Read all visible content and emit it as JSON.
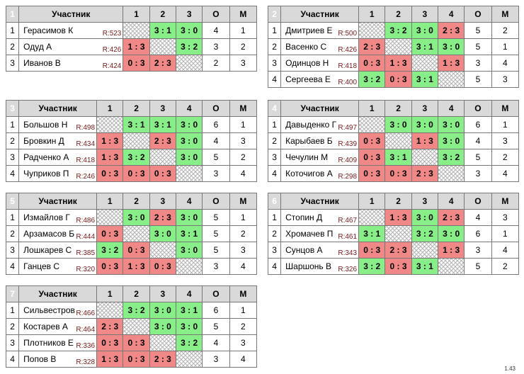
{
  "header": {
    "player": "Участник",
    "points": "О",
    "place": "М"
  },
  "version": "1.43",
  "groups": [
    {
      "number": "1",
      "cols": [
        "1",
        "2",
        "3"
      ],
      "players": [
        {
          "idx": "1",
          "name": "Герасимов К",
          "rating": "R:523",
          "cells": [
            {
              "s": "",
              "t": "self"
            },
            {
              "s": "3 : 1",
              "t": "win"
            },
            {
              "s": "3 : 0",
              "t": "win"
            }
          ],
          "points": "4",
          "place": "1"
        },
        {
          "idx": "2",
          "name": "Одуд А",
          "rating": "R:426",
          "cells": [
            {
              "s": "1 : 3",
              "t": "loss"
            },
            {
              "s": "",
              "t": "self"
            },
            {
              "s": "3 : 2",
              "t": "win"
            }
          ],
          "points": "3",
          "place": "2"
        },
        {
          "idx": "3",
          "name": "Иванов В",
          "rating": "R:424",
          "cells": [
            {
              "s": "0 : 3",
              "t": "loss"
            },
            {
              "s": "2 : 3",
              "t": "loss"
            },
            {
              "s": "",
              "t": "self"
            }
          ],
          "points": "2",
          "place": "3"
        }
      ]
    },
    {
      "number": "2",
      "cols": [
        "1",
        "2",
        "3",
        "4"
      ],
      "players": [
        {
          "idx": "1",
          "name": "Дмитриев Е",
          "rating": "R:500",
          "cells": [
            {
              "s": "",
              "t": "self"
            },
            {
              "s": "3 : 2",
              "t": "win"
            },
            {
              "s": "3 : 0",
              "t": "win"
            },
            {
              "s": "2 : 3",
              "t": "loss"
            }
          ],
          "points": "5",
          "place": "2"
        },
        {
          "idx": "2",
          "name": "Васенко С",
          "rating": "R:426",
          "cells": [
            {
              "s": "2 : 3",
              "t": "loss"
            },
            {
              "s": "",
              "t": "self"
            },
            {
              "s": "3 : 1",
              "t": "win"
            },
            {
              "s": "3 : 0",
              "t": "win"
            }
          ],
          "points": "5",
          "place": "1"
        },
        {
          "idx": "3",
          "name": "Одинцов Н",
          "rating": "R:418",
          "cells": [
            {
              "s": "0 : 3",
              "t": "loss"
            },
            {
              "s": "1 : 3",
              "t": "loss"
            },
            {
              "s": "",
              "t": "self"
            },
            {
              "s": "1 : 3",
              "t": "loss"
            }
          ],
          "points": "3",
          "place": "4"
        },
        {
          "idx": "4",
          "name": "Сергеева Е",
          "rating": "R:400",
          "cells": [
            {
              "s": "3 : 2",
              "t": "win"
            },
            {
              "s": "0 : 3",
              "t": "loss"
            },
            {
              "s": "3 : 1",
              "t": "win"
            },
            {
              "s": "",
              "t": "self"
            }
          ],
          "points": "5",
          "place": "3"
        }
      ]
    },
    {
      "number": "3",
      "cols": [
        "1",
        "2",
        "3",
        "4"
      ],
      "players": [
        {
          "idx": "1",
          "name": "Большов Н",
          "rating": "R:498",
          "cells": [
            {
              "s": "",
              "t": "self"
            },
            {
              "s": "3 : 1",
              "t": "win"
            },
            {
              "s": "3 : 1",
              "t": "win"
            },
            {
              "s": "3 : 0",
              "t": "win"
            }
          ],
          "points": "6",
          "place": "1"
        },
        {
          "idx": "2",
          "name": "Бровкин Д",
          "rating": "R:434",
          "cells": [
            {
              "s": "1 : 3",
              "t": "loss"
            },
            {
              "s": "",
              "t": "self"
            },
            {
              "s": "2 : 3",
              "t": "loss"
            },
            {
              "s": "3 : 0",
              "t": "win"
            }
          ],
          "points": "4",
          "place": "3"
        },
        {
          "idx": "3",
          "name": "Радченко А",
          "rating": "R:418",
          "cells": [
            {
              "s": "1 : 3",
              "t": "loss"
            },
            {
              "s": "3 : 2",
              "t": "win"
            },
            {
              "s": "",
              "t": "self"
            },
            {
              "s": "3 : 0",
              "t": "win"
            }
          ],
          "points": "5",
          "place": "2"
        },
        {
          "idx": "4",
          "name": "Чуприков П",
          "rating": "R:246",
          "cells": [
            {
              "s": "0 : 3",
              "t": "loss"
            },
            {
              "s": "0 : 3",
              "t": "loss"
            },
            {
              "s": "0 : 3",
              "t": "loss"
            },
            {
              "s": "",
              "t": "self"
            }
          ],
          "points": "3",
          "place": "4"
        }
      ]
    },
    {
      "number": "4",
      "cols": [
        "1",
        "2",
        "3",
        "4"
      ],
      "players": [
        {
          "idx": "1",
          "name": "Давыденко Г",
          "rating": "R:497",
          "cells": [
            {
              "s": "",
              "t": "self"
            },
            {
              "s": "3 : 0",
              "t": "win"
            },
            {
              "s": "3 : 0",
              "t": "win"
            },
            {
              "s": "3 : 0",
              "t": "win"
            }
          ],
          "points": "6",
          "place": "1"
        },
        {
          "idx": "2",
          "name": "Карыбаев Б",
          "rating": "R:439",
          "cells": [
            {
              "s": "0 : 3",
              "t": "loss"
            },
            {
              "s": "",
              "t": "self"
            },
            {
              "s": "1 : 3",
              "t": "loss"
            },
            {
              "s": "3 : 0",
              "t": "win"
            }
          ],
          "points": "4",
          "place": "3"
        },
        {
          "idx": "3",
          "name": "Чечулин М",
          "rating": "R:409",
          "cells": [
            {
              "s": "0 : 3",
              "t": "loss"
            },
            {
              "s": "3 : 1",
              "t": "win"
            },
            {
              "s": "",
              "t": "self"
            },
            {
              "s": "3 : 2",
              "t": "win"
            }
          ],
          "points": "5",
          "place": "2"
        },
        {
          "idx": "4",
          "name": "Коточигов А",
          "rating": "R:298",
          "cells": [
            {
              "s": "0 : 3",
              "t": "loss"
            },
            {
              "s": "0 : 3",
              "t": "loss"
            },
            {
              "s": "2 : 3",
              "t": "loss"
            },
            {
              "s": "",
              "t": "self"
            }
          ],
          "points": "3",
          "place": "4"
        }
      ]
    },
    {
      "number": "5",
      "cols": [
        "1",
        "2",
        "3",
        "4"
      ],
      "players": [
        {
          "idx": "1",
          "name": "Измайлов Г",
          "rating": "R:486",
          "cells": [
            {
              "s": "",
              "t": "self"
            },
            {
              "s": "3 : 0",
              "t": "win"
            },
            {
              "s": "2 : 3",
              "t": "loss"
            },
            {
              "s": "3 : 0",
              "t": "win"
            }
          ],
          "points": "5",
          "place": "1"
        },
        {
          "idx": "2",
          "name": "Арзамасов Б",
          "rating": "R:444",
          "cells": [
            {
              "s": "0 : 3",
              "t": "loss"
            },
            {
              "s": "",
              "t": "self"
            },
            {
              "s": "3 : 0",
              "t": "win"
            },
            {
              "s": "3 : 1",
              "t": "win"
            }
          ],
          "points": "5",
          "place": "2"
        },
        {
          "idx": "3",
          "name": "Лошкарев С",
          "rating": "R:385",
          "cells": [
            {
              "s": "3 : 2",
              "t": "win"
            },
            {
              "s": "0 : 3",
              "t": "loss"
            },
            {
              "s": "",
              "t": "self"
            },
            {
              "s": "3 : 0",
              "t": "win"
            }
          ],
          "points": "5",
          "place": "3"
        },
        {
          "idx": "4",
          "name": "Ганцев С",
          "rating": "R:320",
          "cells": [
            {
              "s": "0 : 3",
              "t": "loss"
            },
            {
              "s": "1 : 3",
              "t": "loss"
            },
            {
              "s": "0 : 3",
              "t": "loss"
            },
            {
              "s": "",
              "t": "self"
            }
          ],
          "points": "3",
          "place": "4"
        }
      ]
    },
    {
      "number": "6",
      "cols": [
        "1",
        "2",
        "3",
        "4"
      ],
      "players": [
        {
          "idx": "1",
          "name": "Стопин Д",
          "rating": "R:467",
          "cells": [
            {
              "s": "",
              "t": "self"
            },
            {
              "s": "1 : 3",
              "t": "loss"
            },
            {
              "s": "3 : 0",
              "t": "win"
            },
            {
              "s": "2 : 3",
              "t": "loss"
            }
          ],
          "points": "4",
          "place": "3"
        },
        {
          "idx": "2",
          "name": "Хромачев П",
          "rating": "R:461",
          "cells": [
            {
              "s": "3 : 1",
              "t": "win"
            },
            {
              "s": "",
              "t": "self"
            },
            {
              "s": "3 : 2",
              "t": "win"
            },
            {
              "s": "3 : 0",
              "t": "win"
            }
          ],
          "points": "6",
          "place": "1"
        },
        {
          "idx": "3",
          "name": "Сунцов А",
          "rating": "R:343",
          "cells": [
            {
              "s": "0 : 3",
              "t": "loss"
            },
            {
              "s": "2 : 3",
              "t": "loss"
            },
            {
              "s": "",
              "t": "self"
            },
            {
              "s": "1 : 3",
              "t": "loss"
            }
          ],
          "points": "3",
          "place": "4"
        },
        {
          "idx": "4",
          "name": "Шаршонь В",
          "rating": "R:326",
          "cells": [
            {
              "s": "3 : 2",
              "t": "win"
            },
            {
              "s": "0 : 3",
              "t": "loss"
            },
            {
              "s": "3 : 1",
              "t": "win"
            },
            {
              "s": "",
              "t": "self"
            }
          ],
          "points": "5",
          "place": "2"
        }
      ]
    },
    {
      "number": "7",
      "cols": [
        "1",
        "2",
        "3",
        "4"
      ],
      "players": [
        {
          "idx": "1",
          "name": "Сильвестров",
          "rating": "R:466",
          "cells": [
            {
              "s": "",
              "t": "self"
            },
            {
              "s": "3 : 2",
              "t": "win"
            },
            {
              "s": "3 : 0",
              "t": "win"
            },
            {
              "s": "3 : 1",
              "t": "win"
            }
          ],
          "points": "6",
          "place": "1"
        },
        {
          "idx": "2",
          "name": "Костарев А",
          "rating": "R:464",
          "cells": [
            {
              "s": "2 : 3",
              "t": "loss"
            },
            {
              "s": "",
              "t": "self"
            },
            {
              "s": "3 : 0",
              "t": "win"
            },
            {
              "s": "3 : 0",
              "t": "win"
            }
          ],
          "points": "5",
          "place": "2"
        },
        {
          "idx": "3",
          "name": "Плотников Е",
          "rating": "R:336",
          "cells": [
            {
              "s": "0 : 3",
              "t": "loss"
            },
            {
              "s": "0 : 3",
              "t": "loss"
            },
            {
              "s": "",
              "t": "self"
            },
            {
              "s": "3 : 2",
              "t": "win"
            }
          ],
          "points": "4",
          "place": "3"
        },
        {
          "idx": "4",
          "name": "Попов В",
          "rating": "R:328",
          "cells": [
            {
              "s": "1 : 3",
              "t": "loss"
            },
            {
              "s": "0 : 3",
              "t": "loss"
            },
            {
              "s": "2 : 3",
              "t": "loss"
            },
            {
              "s": "",
              "t": "self"
            }
          ],
          "points": "3",
          "place": "4"
        }
      ]
    }
  ]
}
